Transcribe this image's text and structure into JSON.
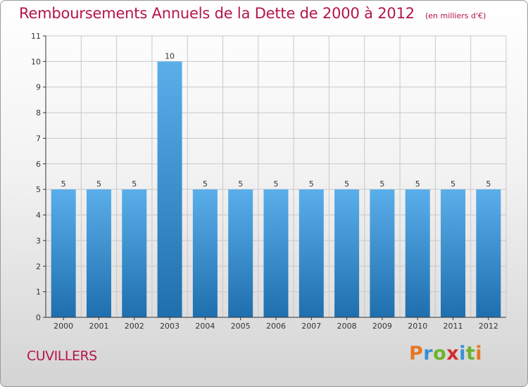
{
  "header": {
    "title": "Remboursements Annuels de la Dette de 2000 à 2012",
    "subtitle": "(en milliers d'€)"
  },
  "commune": "CUVILLERS",
  "logo": {
    "text": "Proxiti",
    "letters": [
      "P",
      "r",
      "o",
      "x",
      "i",
      "t",
      "i"
    ],
    "colors": [
      "#e87722",
      "#3a8fd6",
      "#6ab42d",
      "#d22d2d",
      "#3a8fd6",
      "#6ab42d",
      "#e87722"
    ]
  },
  "colors": {
    "title": "#b5144d",
    "bar_top": "#5aaeea",
    "bar_bottom": "#1f6fae",
    "grid": "#c8c8c8",
    "axis": "#333333"
  },
  "chart_data": {
    "type": "bar",
    "categories": [
      "2000",
      "2001",
      "2002",
      "2003",
      "2004",
      "2005",
      "2006",
      "2007",
      "2008",
      "2009",
      "2010",
      "2011",
      "2012"
    ],
    "values": [
      5,
      5,
      5,
      10,
      5,
      5,
      5,
      5,
      5,
      5,
      5,
      5,
      5
    ],
    "ylim": [
      0,
      11
    ],
    "yticks": [
      0,
      1,
      2,
      3,
      4,
      5,
      6,
      7,
      8,
      9,
      10,
      11
    ],
    "grid": true,
    "data_labels": true
  }
}
